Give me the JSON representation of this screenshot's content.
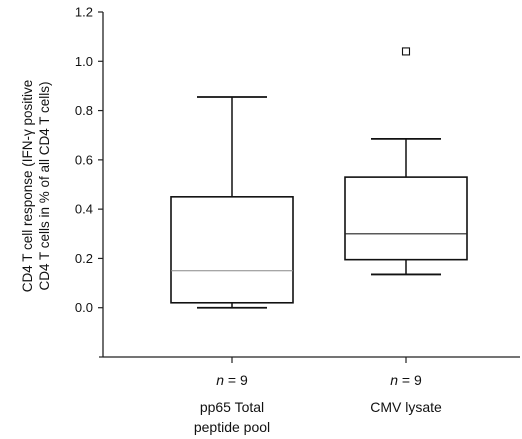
{
  "chart_data": {
    "type": "box",
    "ylabel_line1": "CD4 T cell response (IFN-γ positive",
    "ylabel_line2": "CD4 T cells in % of all CD4 T cells)",
    "ylim": [
      -0.2,
      1.2
    ],
    "yticks": [
      "0.0",
      "0.2",
      "0.4",
      "0.6",
      "0.8",
      "1.0",
      "1.2"
    ],
    "grid": false,
    "categories": [
      {
        "label_lines": [
          "pp65 Total",
          "peptide pool"
        ],
        "n_prefix": "n",
        "n_value": "= 9",
        "whisker_low": 0.0,
        "q1": 0.02,
        "median": 0.15,
        "q3": 0.45,
        "whisker_high": 0.855,
        "outliers": []
      },
      {
        "label_lines": [
          "CMV lysate"
        ],
        "n_prefix": "n",
        "n_value": "= 9",
        "whisker_low": 0.135,
        "q1": 0.195,
        "median": 0.3,
        "q3": 0.53,
        "whisker_high": 0.685,
        "outliers": [
          1.04
        ]
      }
    ]
  }
}
